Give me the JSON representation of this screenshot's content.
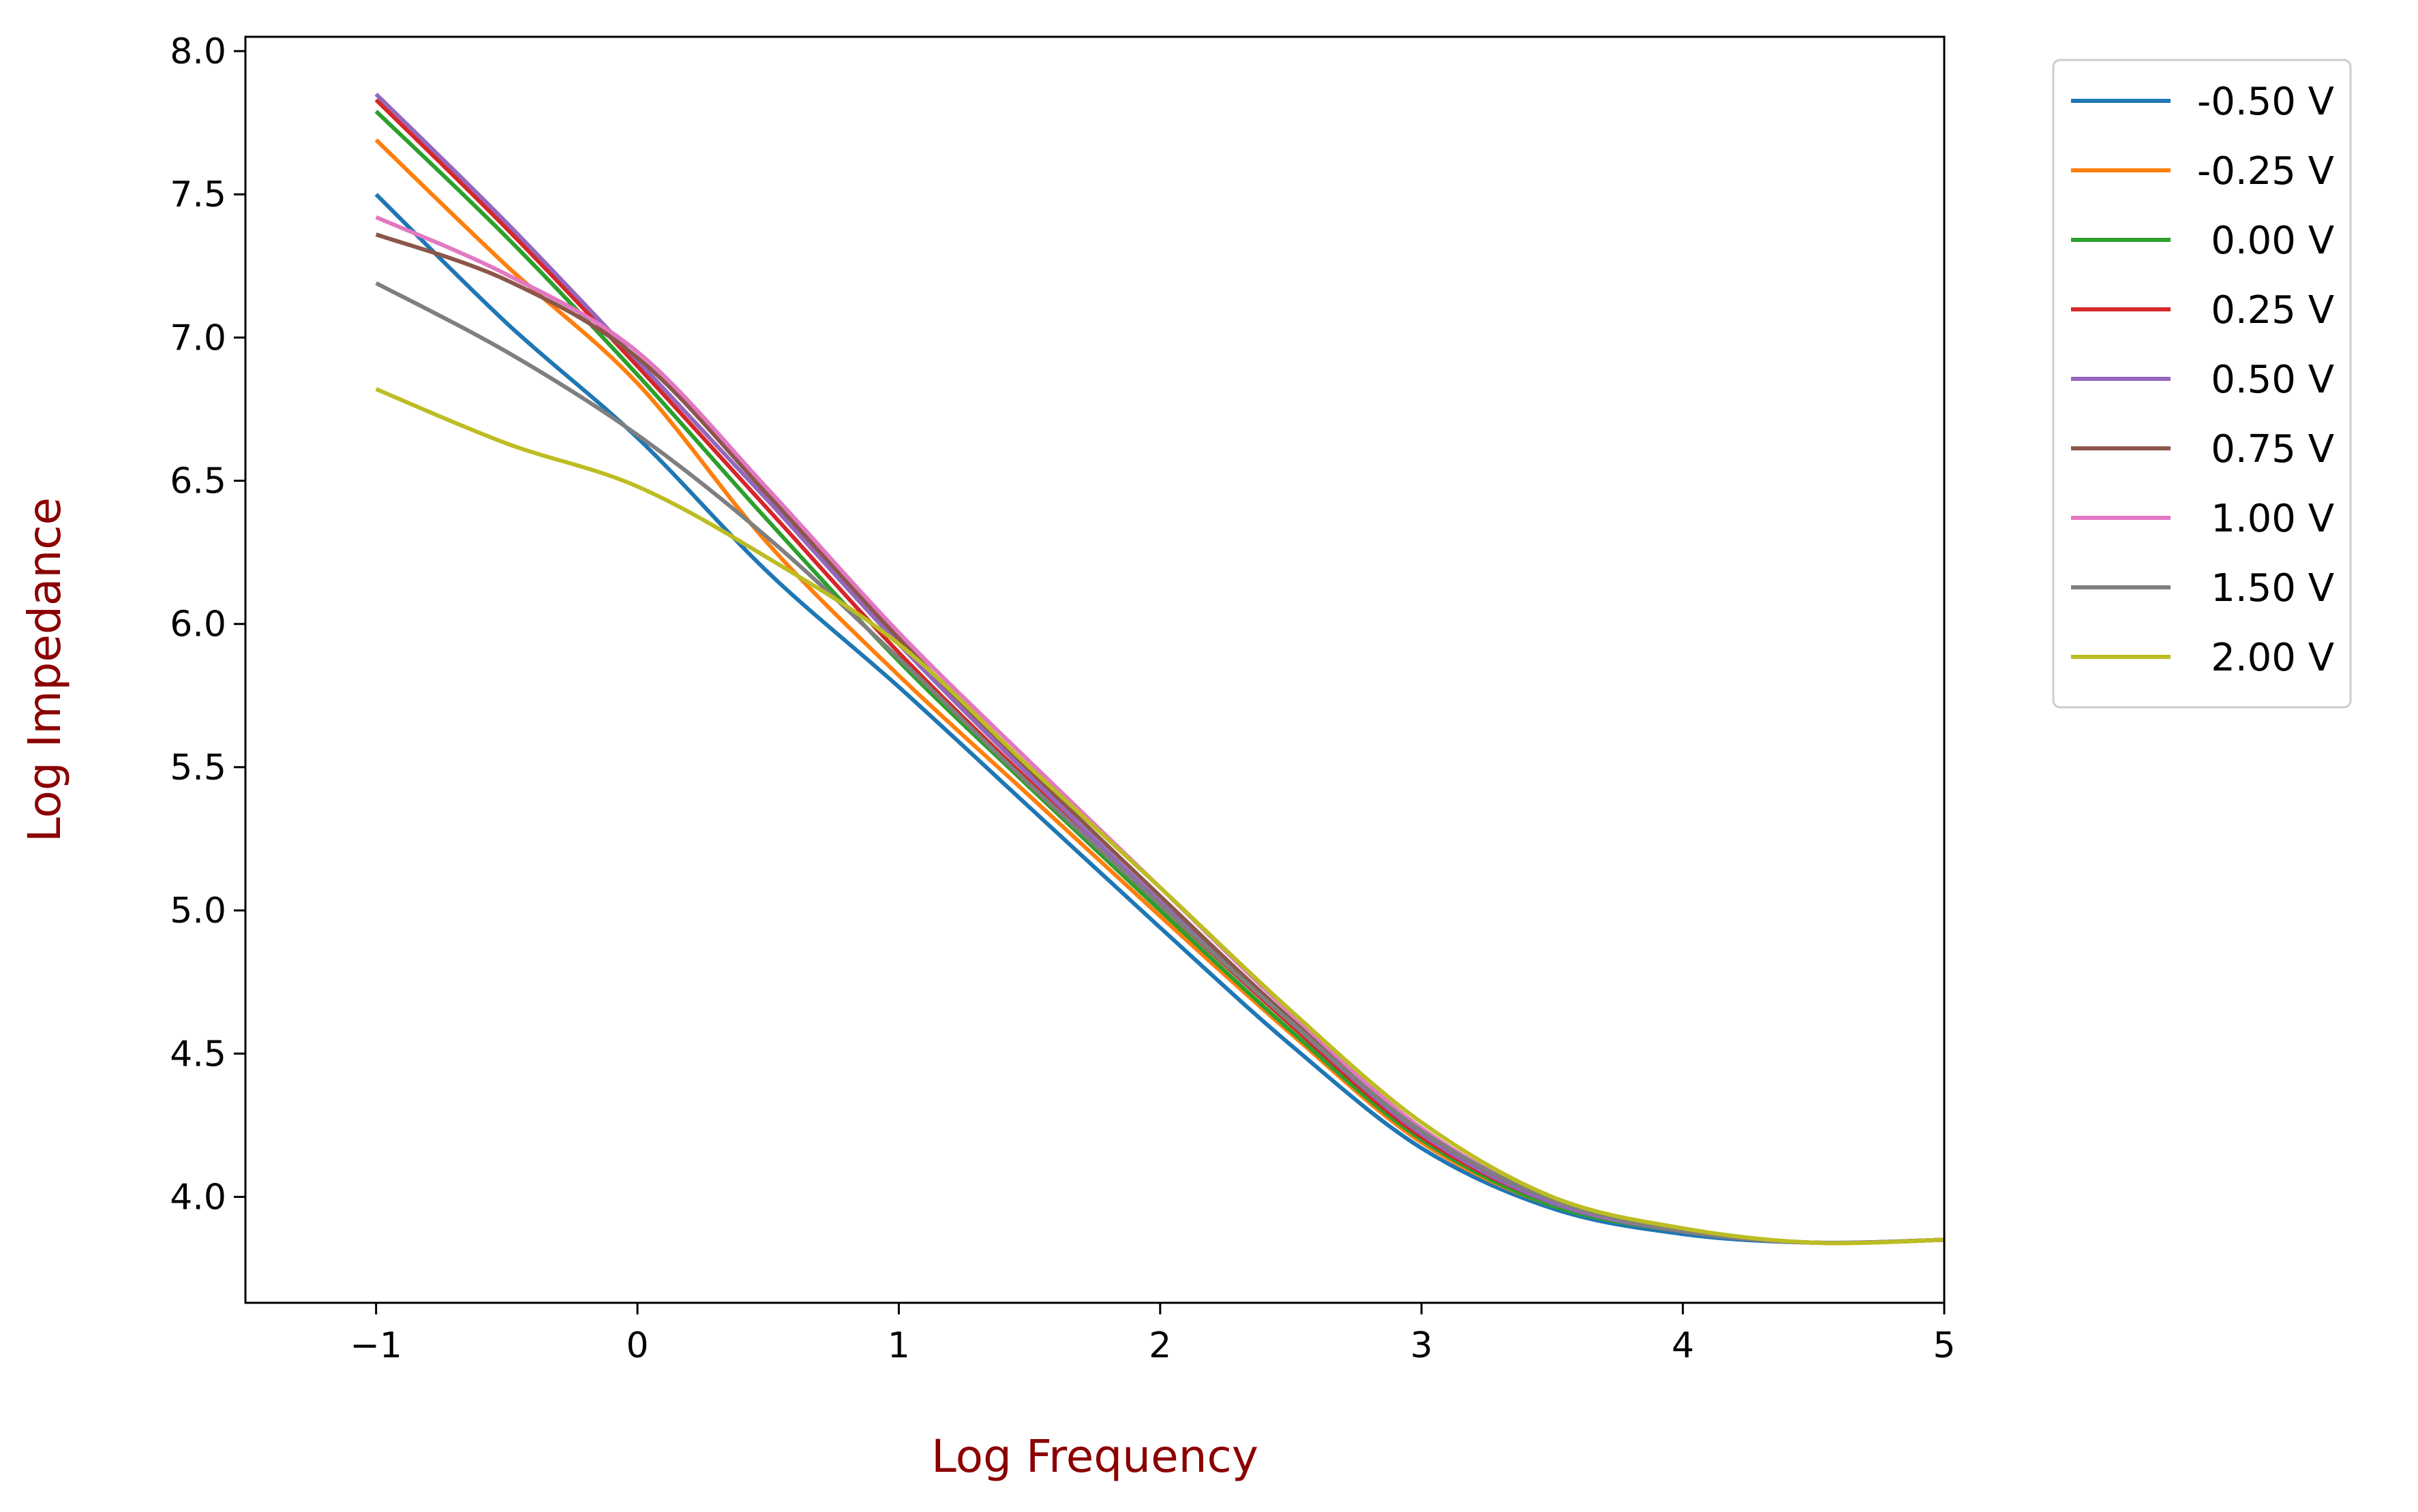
{
  "chart_data": {
    "type": "line",
    "title": "",
    "xlabel": "Log Frequency",
    "ylabel": "Log Impedance",
    "label_color": "#8b0000",
    "xlim": [
      -1.5,
      5
    ],
    "ylim": [
      3.63,
      8.05
    ],
    "xticks": [
      -1,
      0,
      1,
      2,
      3,
      4,
      5
    ],
    "xtick_labels": [
      "−1",
      "0",
      "1",
      "2",
      "3",
      "4",
      "5"
    ],
    "yticks": [
      4.0,
      4.5,
      5.0,
      5.5,
      6.0,
      6.5,
      7.0,
      7.5,
      8.0
    ],
    "ytick_labels": [
      "4.0",
      "4.5",
      "5.0",
      "5.5",
      "6.0",
      "6.5",
      "7.0",
      "7.5",
      "8.0"
    ],
    "grid": false,
    "legend_position": "outside-right-top",
    "x": [
      -1,
      -0.5,
      0,
      0.5,
      1,
      1.5,
      2,
      2.5,
      3,
      3.5,
      4,
      4.5,
      5
    ],
    "series": [
      {
        "name": "-0.50 V",
        "color": "#1f77b4",
        "values": [
          7.5,
          7.05,
          6.65,
          6.18,
          5.78,
          5.36,
          4.94,
          4.53,
          4.17,
          3.96,
          3.87,
          3.84,
          3.85
        ]
      },
      {
        "name": "-0.25 V",
        "color": "#ff7f0e",
        "values": [
          7.69,
          7.25,
          6.84,
          6.28,
          5.82,
          5.4,
          4.98,
          4.57,
          4.19,
          3.97,
          3.88,
          3.84,
          3.85
        ]
      },
      {
        "name": "0.00 V",
        "color": "#2ca02c",
        "values": [
          7.79,
          7.35,
          6.87,
          6.36,
          5.87,
          5.43,
          5.0,
          4.58,
          4.2,
          3.97,
          3.88,
          3.84,
          3.85
        ]
      },
      {
        "name": "0.25 V",
        "color": "#d62728",
        "values": [
          7.83,
          7.38,
          6.9,
          6.4,
          5.9,
          5.45,
          5.02,
          4.6,
          4.21,
          3.98,
          3.88,
          3.84,
          3.85
        ]
      },
      {
        "name": "0.50 V",
        "color": "#9467bd",
        "values": [
          7.85,
          7.4,
          6.92,
          6.43,
          5.93,
          5.47,
          5.03,
          4.61,
          4.22,
          3.98,
          3.88,
          3.84,
          3.85
        ]
      },
      {
        "name": "0.75 V",
        "color": "#8c564b",
        "values": [
          7.36,
          7.2,
          6.93,
          6.45,
          5.95,
          5.49,
          5.05,
          4.62,
          4.23,
          3.99,
          3.88,
          3.84,
          3.85
        ]
      },
      {
        "name": "1.00 V",
        "color": "#e377c2",
        "values": [
          7.42,
          7.22,
          6.95,
          6.47,
          5.97,
          5.52,
          5.08,
          4.64,
          4.24,
          3.99,
          3.88,
          3.84,
          3.85
        ]
      },
      {
        "name": "1.50 V",
        "color": "#7f7f7f",
        "values": [
          7.19,
          6.95,
          6.66,
          6.3,
          5.88,
          5.44,
          5.02,
          4.61,
          4.23,
          3.99,
          3.88,
          3.84,
          3.85
        ]
      },
      {
        "name": "2.00 V",
        "color": "#bcbd22",
        "values": [
          6.82,
          6.63,
          6.48,
          6.23,
          5.93,
          5.5,
          5.08,
          4.65,
          4.26,
          4.0,
          3.89,
          3.84,
          3.85
        ]
      }
    ]
  }
}
